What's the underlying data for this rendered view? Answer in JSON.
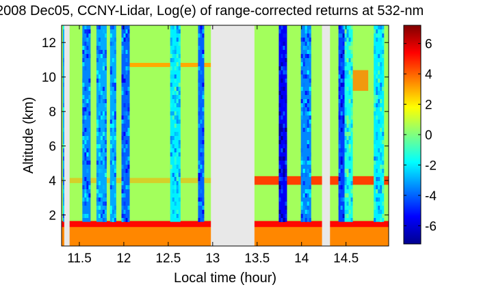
{
  "chart_data": {
    "type": "heatmap",
    "title": "2008 Dec05, CCNY-Lidar, Log(e) of range-corrected returns at 532-nm",
    "xlabel": "Local time (hour)",
    "ylabel": "Altitude (km)",
    "xlim": [
      11.3,
      14.98
    ],
    "ylim": [
      0.2,
      13.0
    ],
    "xticks": [
      11.5,
      12,
      12.5,
      13,
      13.5,
      14,
      14.5
    ],
    "xtick_labels": [
      "11.5",
      "12",
      "12.5",
      "13",
      "13.5",
      "14",
      "14.5"
    ],
    "yticks": [
      2,
      4,
      6,
      8,
      10,
      12
    ],
    "ytick_labels": [
      "2",
      "4",
      "6",
      "8",
      "10",
      "12"
    ],
    "colorbar": {
      "colormap": "jet",
      "range": [
        -7.2,
        7.2
      ],
      "ticks": [
        -6,
        -4,
        -2,
        0,
        2,
        4,
        6
      ],
      "tick_labels": [
        "-6",
        "-4",
        "-2",
        "0",
        "2",
        "4",
        "6"
      ]
    },
    "missing_data_intervals": [
      [
        11.33,
        11.39
      ],
      [
        12.98,
        13.47
      ],
      [
        14.23,
        14.32
      ]
    ],
    "features": {
      "boundary_layer": {
        "top_altitude_km": 1.5,
        "value": 3.5
      },
      "aerosol_layer": {
        "altitude_km": 4.0,
        "value": 4.5
      },
      "cirrus_layer": {
        "altitude_km": 10.7,
        "value": 3.0
      },
      "background_above_bl": {
        "value": 0.5
      },
      "low_signal_columns": [
        {
          "time": 11.35,
          "value": -3.0
        },
        {
          "time": 11.58,
          "value": -3.5
        },
        {
          "time": 11.75,
          "value": -3.0
        },
        {
          "time": 11.88,
          "value": -3.0
        },
        {
          "time": 12.02,
          "value": -4.0
        },
        {
          "time": 12.58,
          "value": -2.0
        },
        {
          "time": 12.87,
          "value": -4.0
        },
        {
          "time": 13.79,
          "value": -5.5
        },
        {
          "time": 14.05,
          "value": -3.5
        },
        {
          "time": 14.45,
          "value": -4.5
        },
        {
          "time": 14.53,
          "value": -1.5
        },
        {
          "time": 14.87,
          "value": -2.0
        }
      ]
    }
  },
  "colors": {
    "missing": "#e8e8e8",
    "axis": "#000000",
    "colormap_stops": [
      "#00008f",
      "#0000ff",
      "#00ffff",
      "#ffff00",
      "#ff0000",
      "#800000"
    ]
  }
}
